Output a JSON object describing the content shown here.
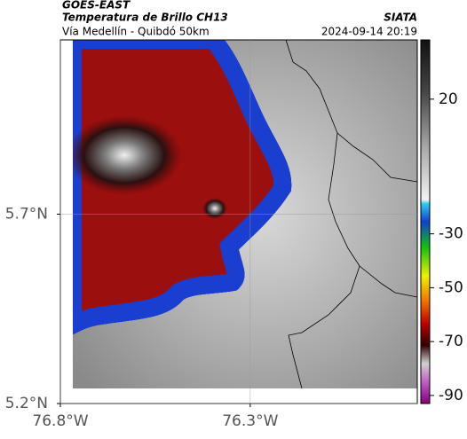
{
  "header": {
    "source": "GOES-EAST",
    "title": "Temperatura de Brillo CH13",
    "subtitle": "Vía Medellín - Quibdó 50km",
    "credit": "SIATA",
    "datetime": "2024-09-14 20:19"
  },
  "map": {
    "xlim": [
      -76.8,
      -75.86
    ],
    "ylim": [
      5.2,
      6.16
    ],
    "xticks": [
      {
        "value": -76.8,
        "label": "76.8°W"
      },
      {
        "value": -76.3,
        "label": "76.3°W"
      }
    ],
    "yticks": [
      {
        "value": 5.7,
        "label": "5.7°N"
      },
      {
        "value": 5.2,
        "label": "5.2°N"
      }
    ],
    "grid": true
  },
  "colorbar": {
    "lim": [
      -93,
      42
    ],
    "ticks": [
      20,
      -30,
      -50,
      -70,
      -90
    ]
  }
}
